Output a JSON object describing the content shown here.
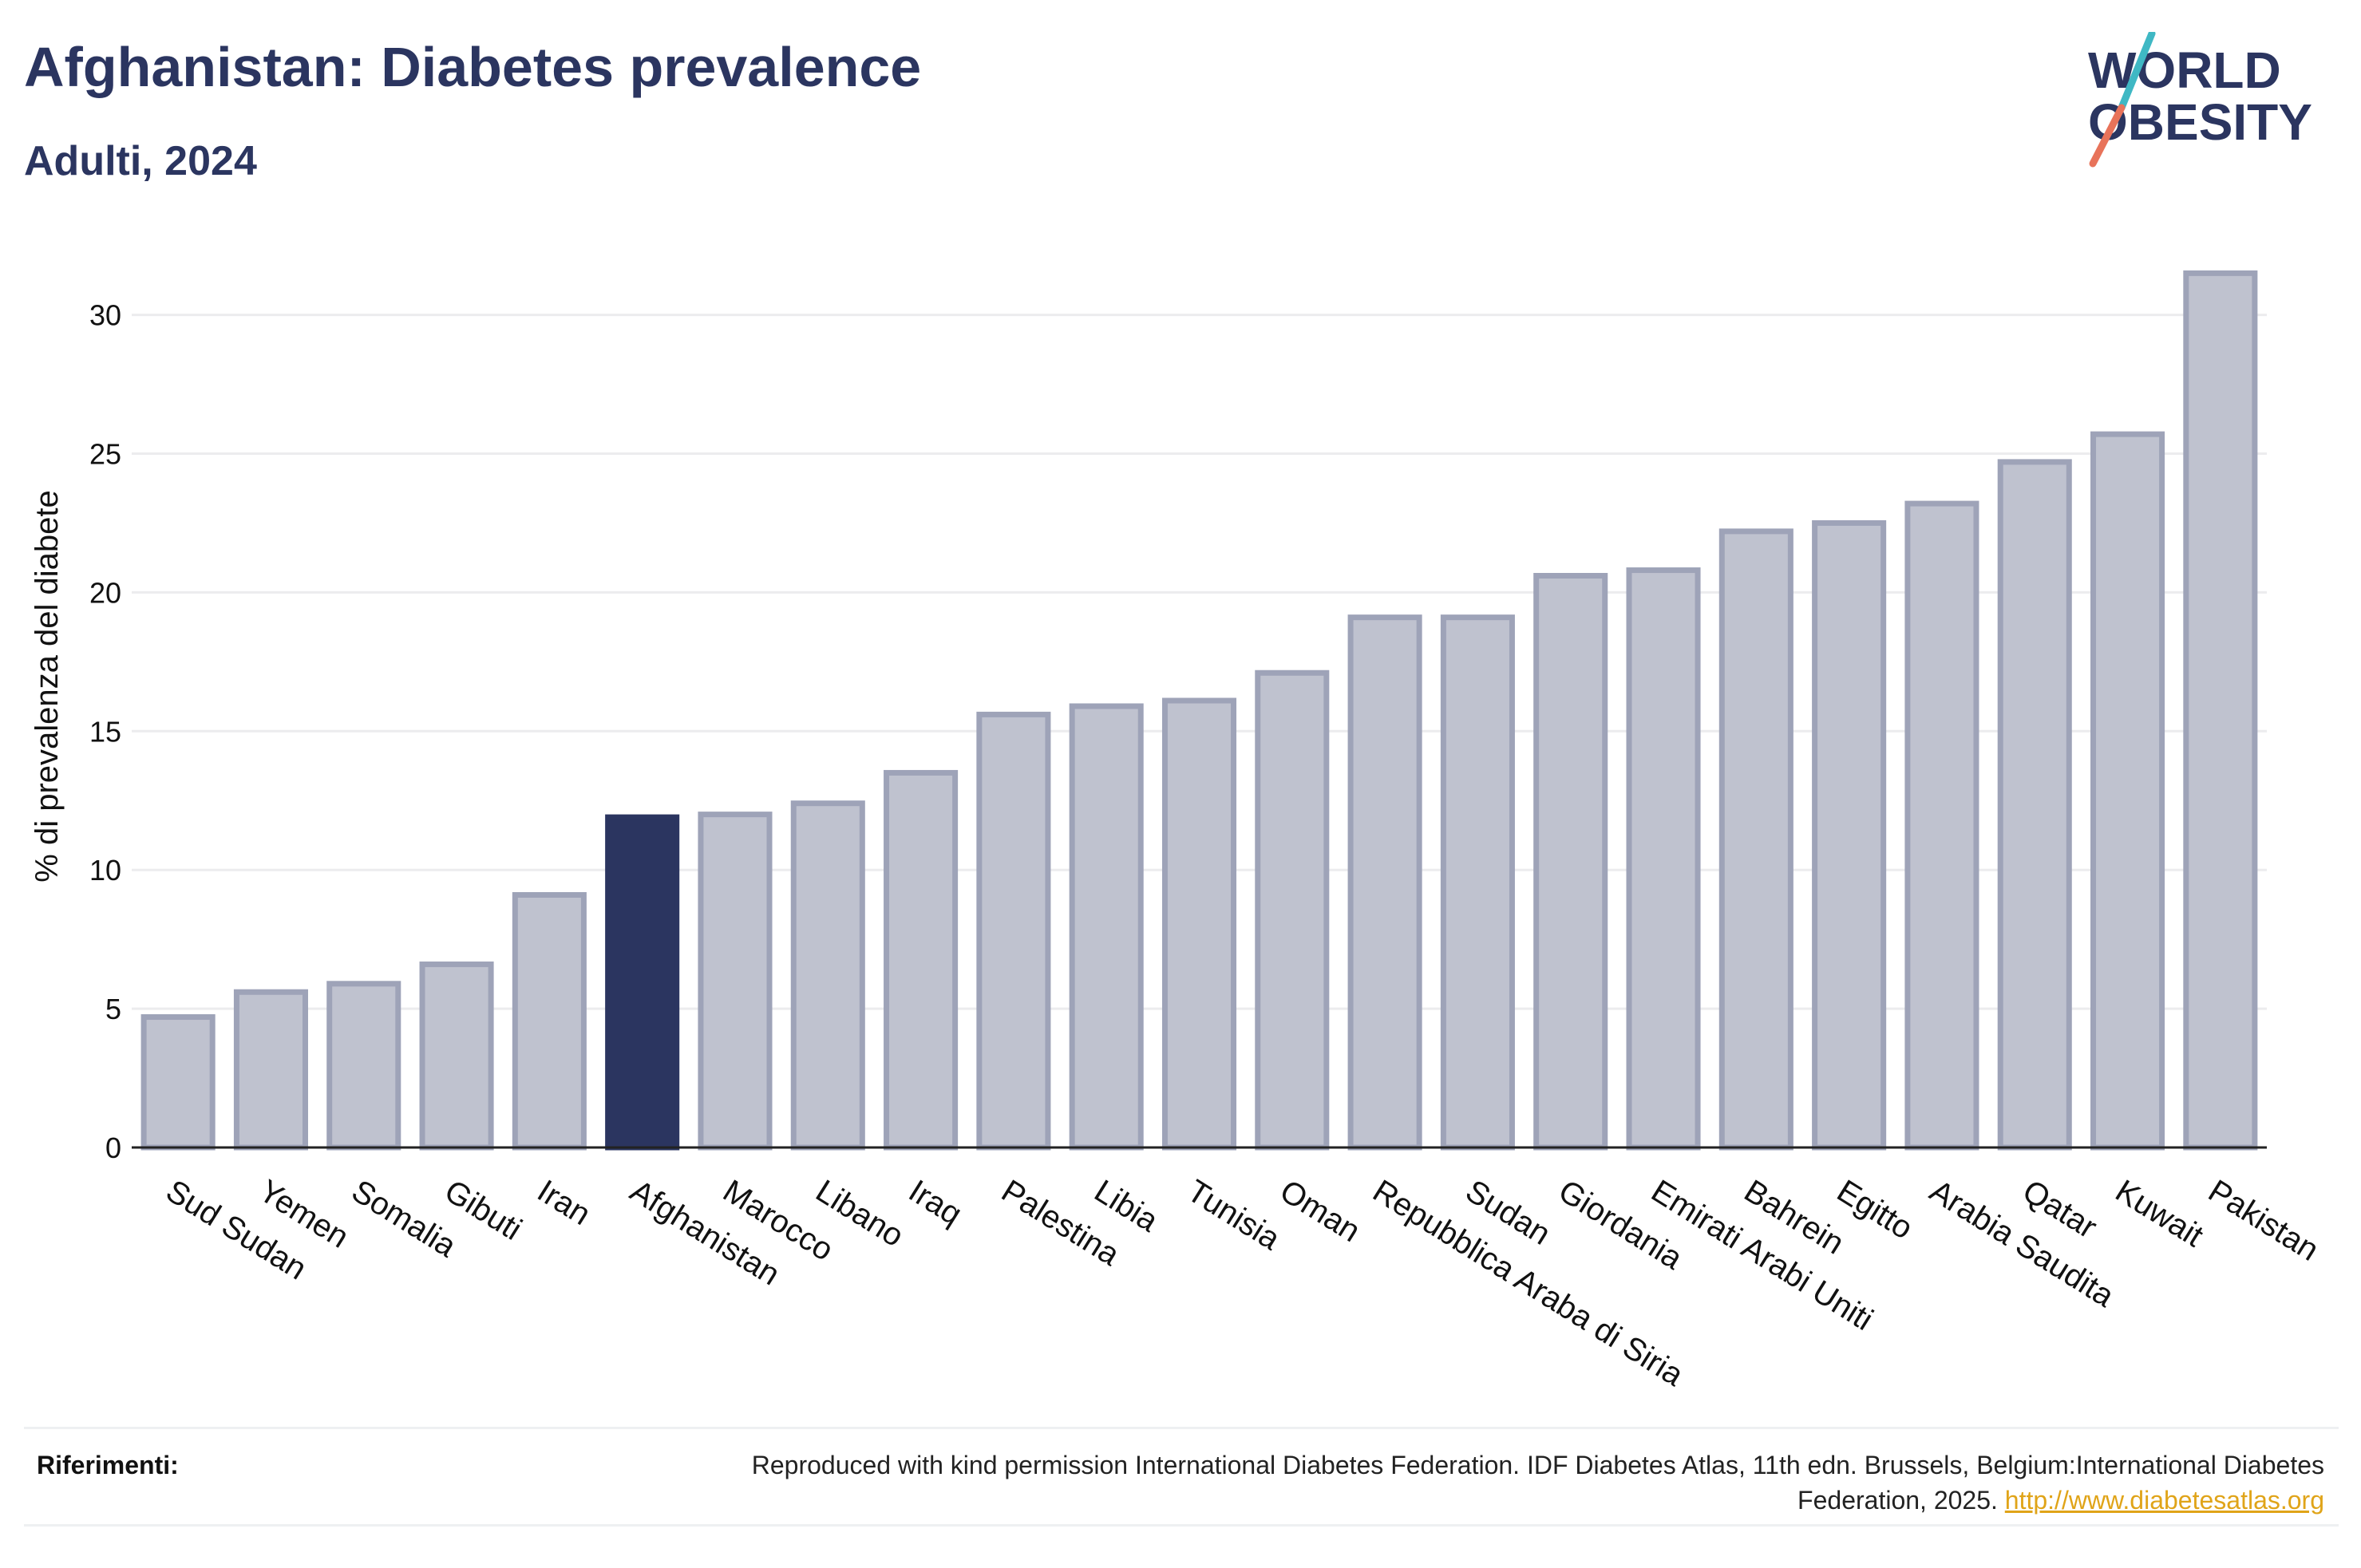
{
  "header": {
    "title": "Afghanistan: Diabetes prevalence",
    "subtitle": "Adulti, 2024"
  },
  "logo": {
    "line1": "WORLD",
    "line2": "OBESITY",
    "slash_colors": [
      "#3fb8c4",
      "#e8735a"
    ]
  },
  "colors": {
    "highlight": "#2b3560",
    "bar_fill": "#bfc2cf",
    "bar_stroke": "#9ea3b8",
    "axis": "#222222",
    "grid": "#ececee"
  },
  "chart_data": {
    "type": "bar",
    "title": "Afghanistan: Diabetes prevalence",
    "subtitle": "Adulti, 2024",
    "xlabel": "",
    "ylabel": "% di prevalenza del diabete",
    "ylim": [
      0,
      32
    ],
    "yticks": [
      0,
      5,
      10,
      15,
      20,
      25,
      30
    ],
    "grid": true,
    "highlight": "Afghanistan",
    "categories": [
      "Sud Sudan",
      "Yemen",
      "Somalia",
      "Gibuti",
      "Iran",
      "Afghanistan",
      "Marocco",
      "Libano",
      "Iraq",
      "Palestina",
      "Libia",
      "Tunisia",
      "Oman",
      "Repubblica Araba di Siria",
      "Sudan",
      "Giordania",
      "Emirati Arabi Uniti",
      "Bahrein",
      "Egitto",
      "Arabia Saudita",
      "Qatar",
      "Kuwait",
      "Pakistan"
    ],
    "values": [
      4.7,
      5.6,
      5.9,
      6.6,
      9.1,
      11.9,
      12.0,
      12.4,
      13.5,
      15.6,
      15.9,
      16.1,
      17.1,
      19.1,
      19.1,
      20.6,
      20.8,
      22.2,
      22.5,
      23.2,
      24.7,
      25.7,
      31.5
    ]
  },
  "references": {
    "label": "Riferimenti:",
    "text": "Reproduced with kind permission International Diabetes Federation. IDF Diabetes Atlas, 11th edn. Brussels, Belgium:International Diabetes Federation, 2025.",
    "link": "http://www.diabetesatlas.org"
  }
}
